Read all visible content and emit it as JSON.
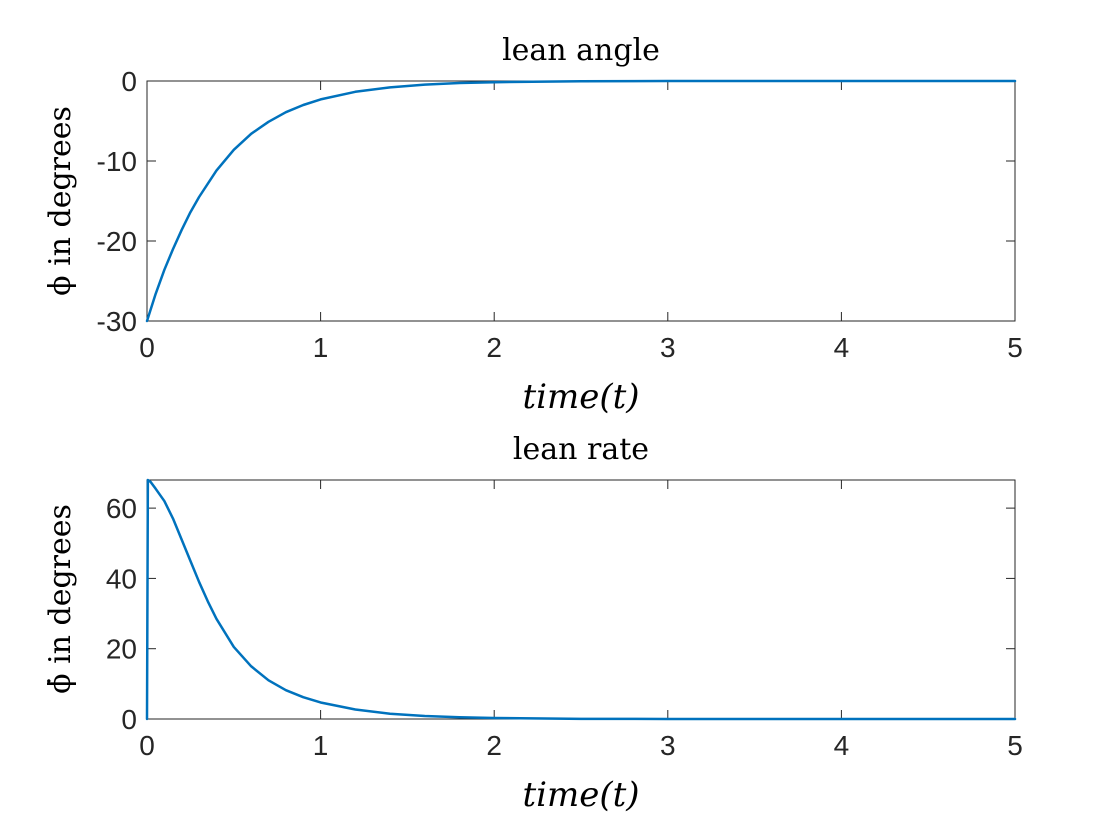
{
  "chart_data": [
    {
      "type": "line",
      "title": "lean angle",
      "xlabel": "time(t)",
      "ylabel": "ϕ in degrees",
      "xlim": [
        0,
        5
      ],
      "ylim": [
        -30,
        0
      ],
      "xticks": [
        "0",
        "1",
        "2",
        "3",
        "4",
        "5"
      ],
      "yticks": [
        "0",
        "-10",
        "-20",
        "-30"
      ],
      "grid": false,
      "series": [
        {
          "color": "#0072bd",
          "x": [
            0,
            0.05,
            0.1,
            0.15,
            0.2,
            0.25,
            0.3,
            0.4,
            0.5,
            0.6,
            0.7,
            0.8,
            0.9,
            1.0,
            1.2,
            1.4,
            1.6,
            1.8,
            2.0,
            2.5,
            3.0,
            3.5,
            4.0,
            4.5,
            5.0
          ],
          "y": [
            -30,
            -26.6,
            -23.6,
            -21.0,
            -18.6,
            -16.4,
            -14.5,
            -11.2,
            -8.6,
            -6.6,
            -5.1,
            -3.9,
            -3.0,
            -2.3,
            -1.35,
            -0.8,
            -0.45,
            -0.25,
            -0.15,
            -0.03,
            0,
            0,
            0,
            0,
            0
          ]
        }
      ]
    },
    {
      "type": "line",
      "title": "lean rate",
      "xlabel": "time(t)",
      "ylabel": "ϕ̇ in degrees",
      "xlim": [
        0,
        5
      ],
      "ylim": [
        0,
        68
      ],
      "xticks": [
        "0",
        "1",
        "2",
        "3",
        "4",
        "5"
      ],
      "yticks": [
        "0",
        "20",
        "40",
        "60"
      ],
      "grid": false,
      "series": [
        {
          "color": "#0072bd",
          "x": [
            0,
            0.005,
            0.02,
            0.05,
            0.1,
            0.15,
            0.2,
            0.25,
            0.3,
            0.35,
            0.4,
            0.5,
            0.6,
            0.7,
            0.8,
            0.9,
            1.0,
            1.2,
            1.4,
            1.6,
            1.8,
            2.0,
            2.5,
            3.0,
            3.5,
            4.0,
            4.5,
            5.0
          ],
          "y": [
            0,
            68,
            67.5,
            65.5,
            62,
            57,
            51,
            45,
            39,
            33.5,
            28.5,
            20.5,
            15,
            11,
            8.2,
            6.2,
            4.7,
            2.7,
            1.5,
            0.85,
            0.5,
            0.3,
            0.05,
            0,
            0,
            0,
            0,
            0
          ]
        }
      ]
    }
  ]
}
